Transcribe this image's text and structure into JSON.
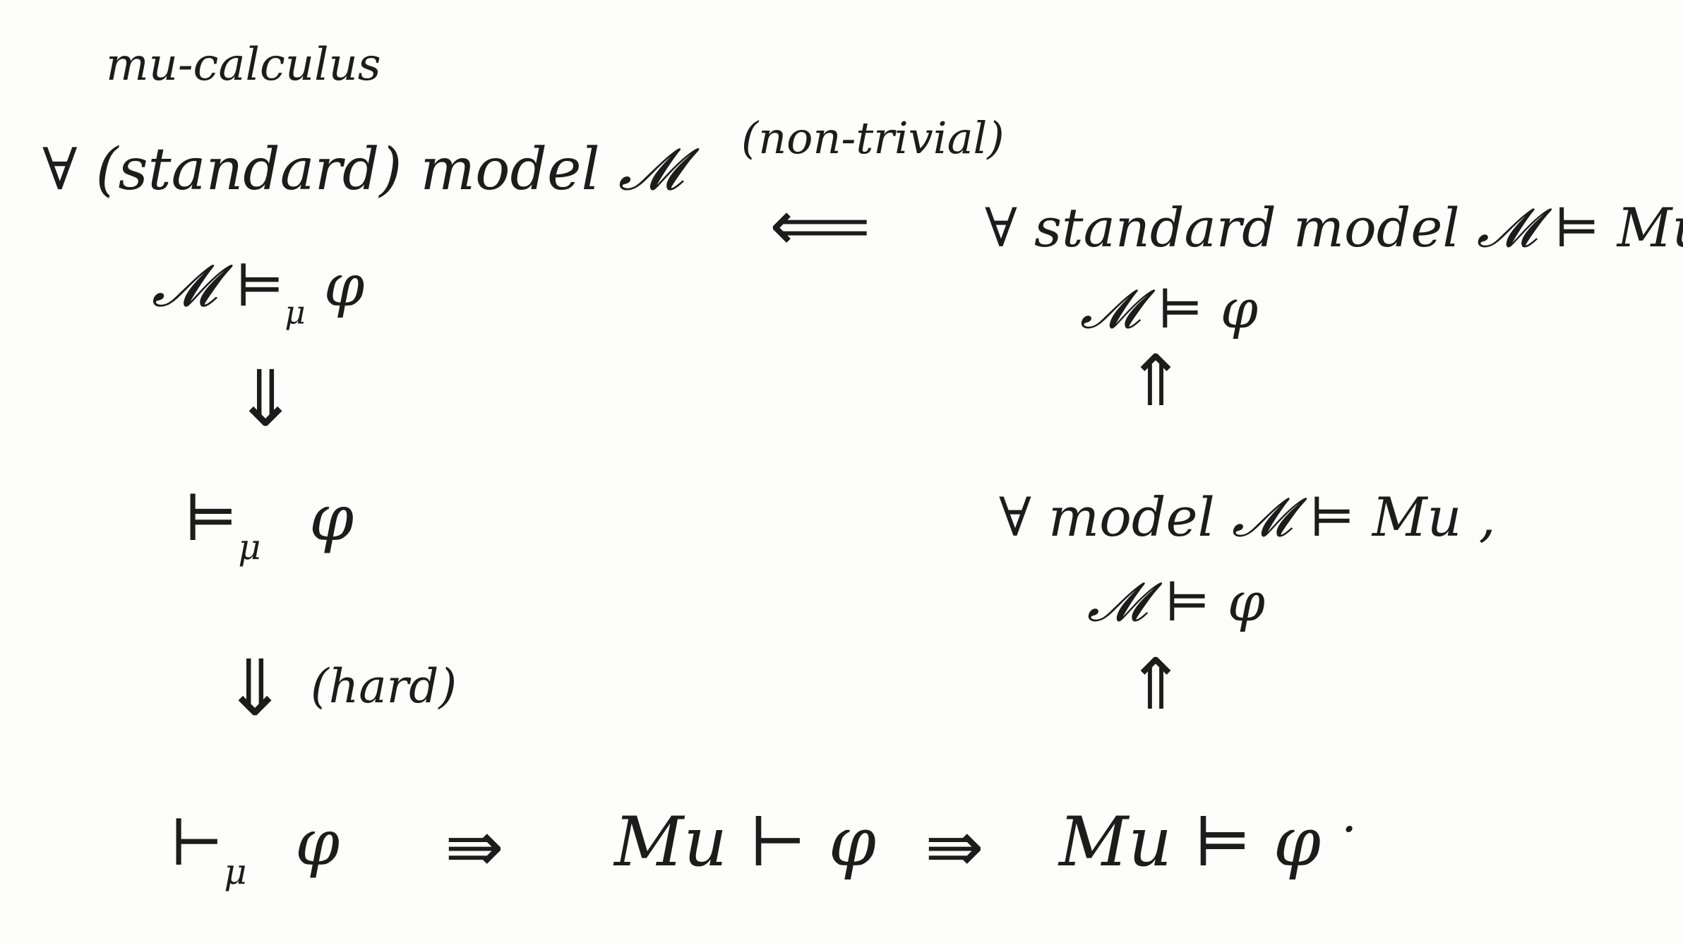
{
  "header": {
    "title": "mu-calculus"
  },
  "left": {
    "line1": "∀ (standard) model 𝓜",
    "line2_main": "𝓜 ⊨",
    "line2_sub": "μ",
    "line2_tail": "φ",
    "line3_main": "⊨",
    "line3_sub": "μ",
    "line3_tail": "φ",
    "hard_label": "(hard)",
    "line4_main": "⊢",
    "line4_sub": "μ",
    "line4_tail": "φ"
  },
  "right": {
    "nontrivial_label": "(non-trivial)",
    "top_line1": "∀ standard model 𝓜 ⊨ Mu ,",
    "top_line2": "𝓜 ⊨ φ",
    "mid_line1": "∀ model 𝓜 ⊨ Mu ,",
    "mid_line2": "𝓜 ⊨ φ"
  },
  "bottom": {
    "mu_proves": "Mu ⊢ φ",
    "mu_models": "Mu ⊨ φ",
    "dot": "·"
  },
  "arrows": {
    "down": "⇓",
    "up": "⇑",
    "right": "⇛",
    "left": "⟸"
  }
}
